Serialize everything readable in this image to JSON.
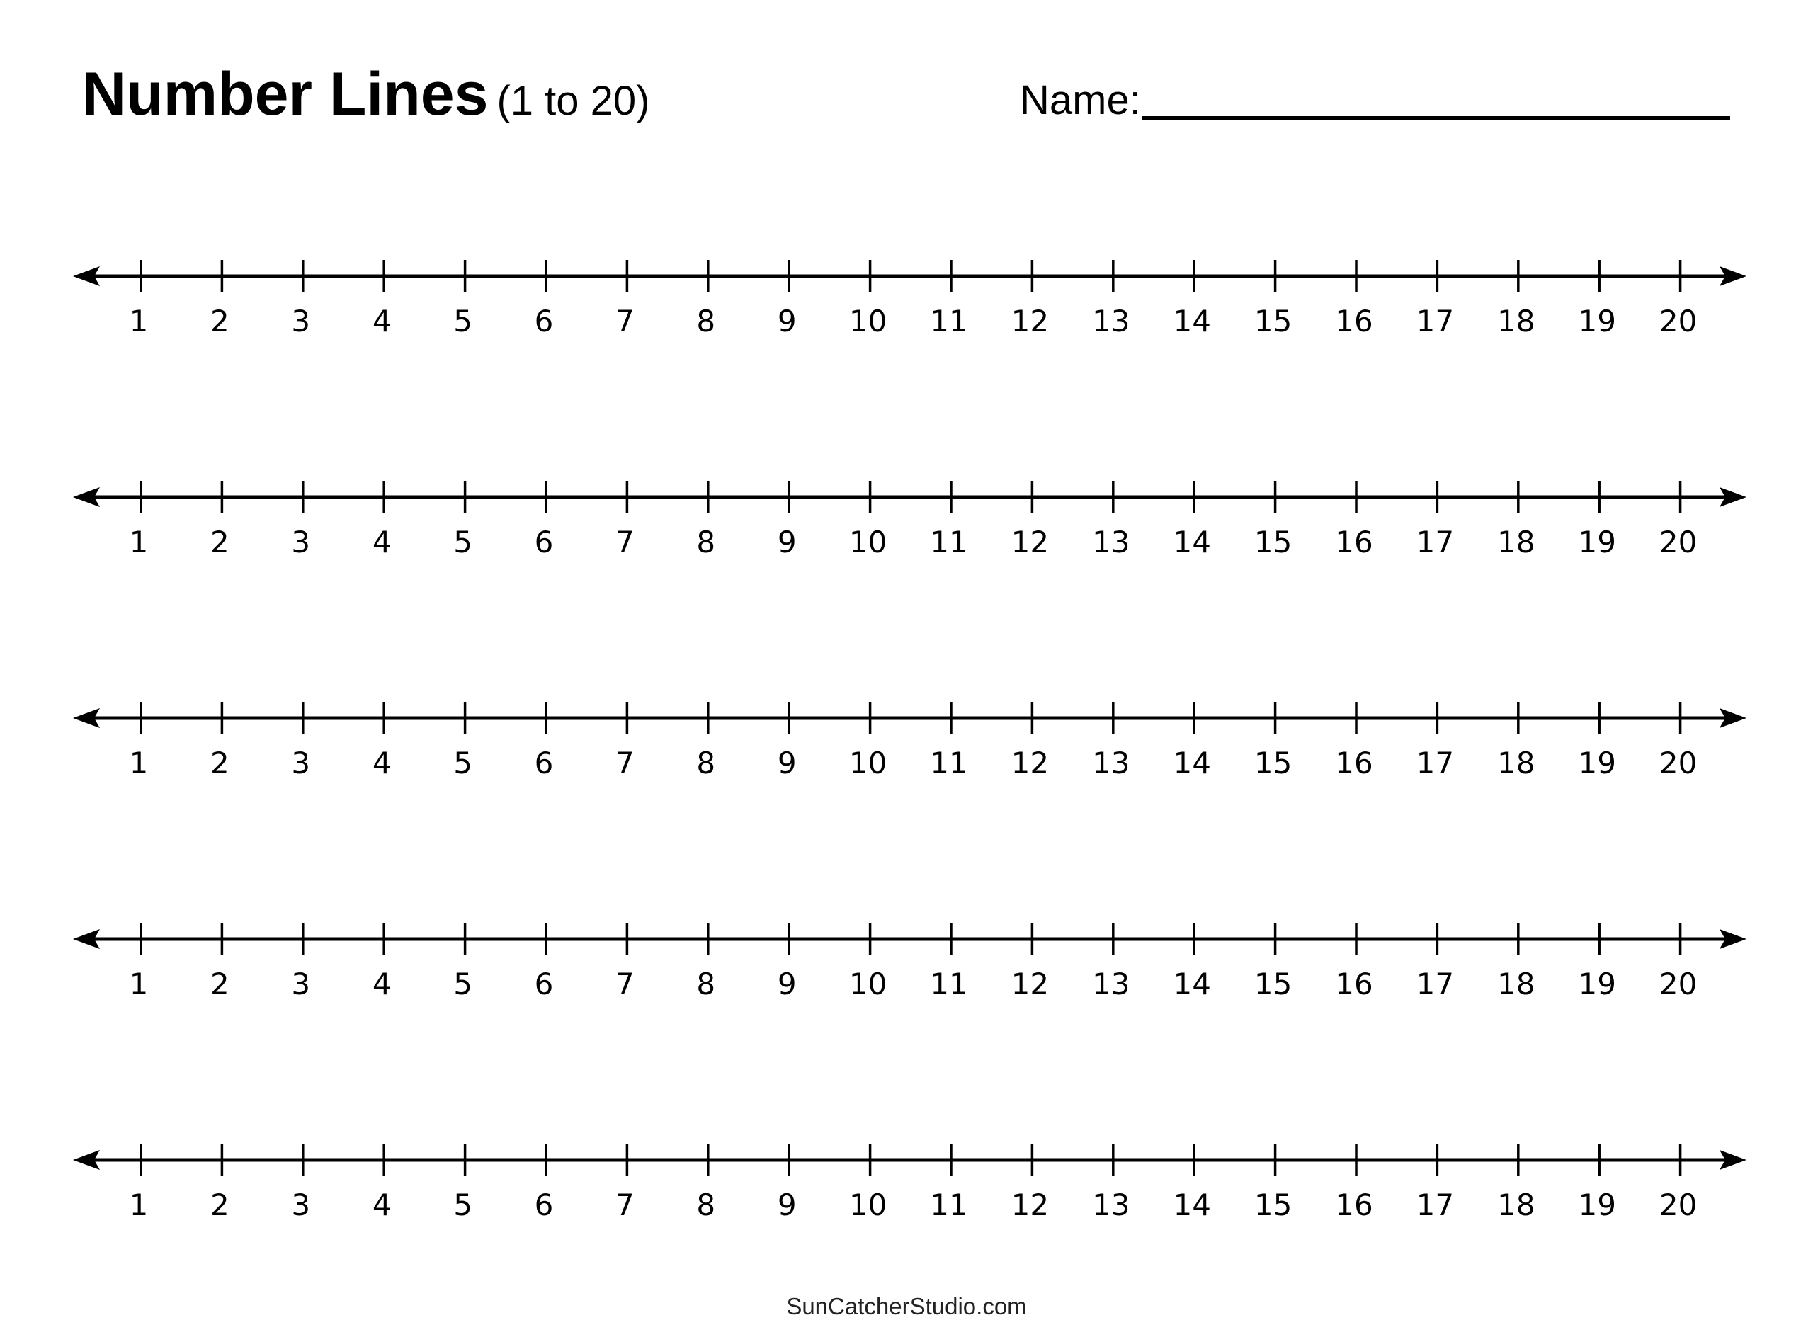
{
  "header": {
    "title": "Number Lines",
    "subtitle": "(1 to 20)",
    "name_label": "Name:"
  },
  "number_lines": {
    "count": 5,
    "start": 1,
    "end": 20,
    "tick_labels": [
      "1",
      "2",
      "3",
      "4",
      "5",
      "6",
      "7",
      "8",
      "9",
      "10",
      "11",
      "12",
      "13",
      "14",
      "15",
      "16",
      "17",
      "18",
      "19",
      "20"
    ]
  },
  "footer": {
    "text": "SunCatcherStudio.com"
  },
  "colors": {
    "ink": "#000000",
    "background": "#ffffff"
  }
}
